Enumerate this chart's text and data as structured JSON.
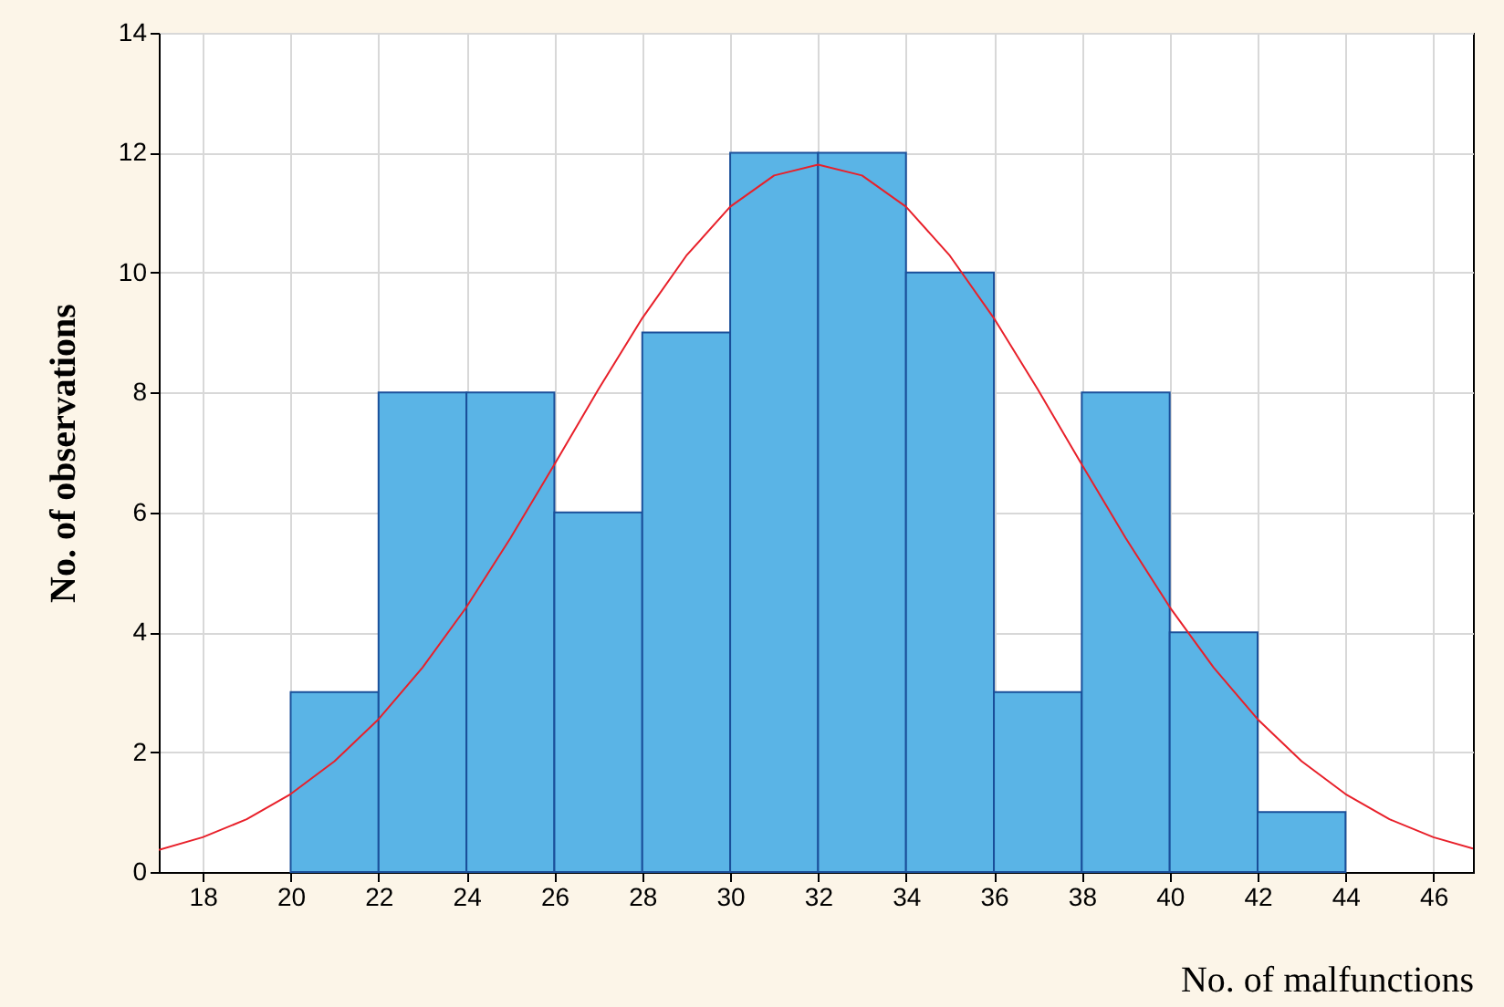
{
  "chart_data": {
    "type": "histogram",
    "xlabel": "No. of malfunctions",
    "ylabel": "No. of observations",
    "bins": [
      20,
      22,
      24,
      26,
      28,
      30,
      32,
      34,
      36,
      38,
      40,
      42,
      44
    ],
    "values": [
      3,
      8,
      8,
      6,
      9,
      12,
      12,
      10,
      3,
      8,
      4,
      1
    ],
    "color": "#5ab4e6",
    "series": [
      {
        "type": "line",
        "color": "#e8202a",
        "x": [
          17,
          18,
          19,
          20,
          21,
          22,
          23,
          24,
          25,
          26,
          27,
          28,
          29,
          30,
          31,
          32,
          33,
          34,
          35,
          36,
          37,
          38,
          39,
          40,
          41,
          42,
          43,
          44,
          45,
          46,
          46.9
        ],
        "values": [
          0.37,
          0.58,
          0.88,
          1.3,
          1.85,
          2.55,
          3.41,
          4.42,
          5.57,
          6.8,
          8.05,
          9.24,
          10.28,
          11.1,
          11.62,
          11.8,
          11.62,
          11.1,
          10.28,
          9.24,
          8.05,
          6.8,
          5.57,
          4.42,
          3.41,
          2.55,
          1.85,
          1.3,
          0.88,
          0.58,
          0.39
        ]
      }
    ],
    "xlim": [
      17,
      46.9
    ],
    "xticks": [
      18,
      20,
      22,
      24,
      26,
      28,
      30,
      32,
      34,
      36,
      38,
      40,
      42,
      44,
      46
    ],
    "ylim": [
      0,
      14
    ],
    "yticks": [
      0,
      2,
      4,
      6,
      8,
      10,
      12,
      14
    ],
    "grid": true
  }
}
